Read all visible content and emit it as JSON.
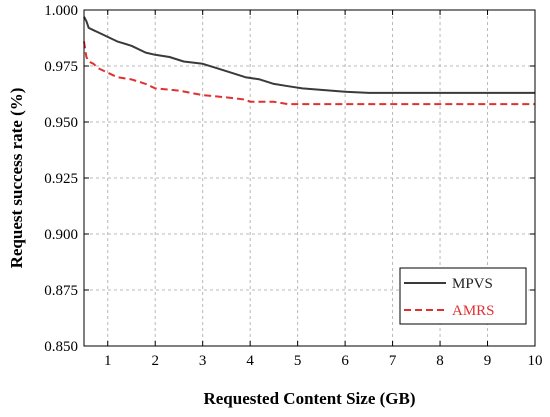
{
  "chart_data": {
    "type": "line",
    "xlabel": "Requested Content Size (GB)",
    "ylabel": "Request success rate (%)",
    "xlim": [
      0.5,
      10
    ],
    "ylim": [
      0.85,
      1.0
    ],
    "x_ticks": [
      1,
      2,
      3,
      4,
      5,
      6,
      7,
      8,
      9,
      10
    ],
    "y_ticks": [
      0.85,
      0.875,
      0.9,
      0.925,
      0.95,
      0.975,
      1.0
    ],
    "x_tick_labels": [
      "1",
      "2",
      "3",
      "4",
      "5",
      "6",
      "7",
      "8",
      "9",
      "10"
    ],
    "y_tick_labels": [
      "0.850",
      "0.875",
      "0.900",
      "0.925",
      "0.950",
      "0.975",
      "1.000"
    ],
    "grid": true,
    "legend_position": "bottom-right",
    "series": [
      {
        "name": "MPVS",
        "color": "#3a3a3a",
        "line_style": "solid",
        "x": [
          0.5,
          0.55,
          0.6,
          0.7,
          0.8,
          1.0,
          1.2,
          1.5,
          1.8,
          2.0,
          2.3,
          2.6,
          3.0,
          3.3,
          3.6,
          3.9,
          4.2,
          4.5,
          4.8,
          5.1,
          5.4,
          5.7,
          6.0,
          6.5,
          7.0,
          7.5,
          8.0,
          8.5,
          9.0,
          9.5,
          10.0
        ],
        "y": [
          0.997,
          0.995,
          0.992,
          0.991,
          0.99,
          0.988,
          0.986,
          0.984,
          0.981,
          0.98,
          0.979,
          0.977,
          0.976,
          0.974,
          0.972,
          0.97,
          0.969,
          0.967,
          0.966,
          0.965,
          0.9645,
          0.964,
          0.9635,
          0.963,
          0.963,
          0.963,
          0.963,
          0.963,
          0.963,
          0.963,
          0.963
        ]
      },
      {
        "name": "AMRS",
        "color": "#e03030",
        "line_style": "dashed",
        "x": [
          0.5,
          0.55,
          0.6,
          0.7,
          0.8,
          1.0,
          1.2,
          1.5,
          1.8,
          2.0,
          2.5,
          3.0,
          3.5,
          3.9,
          4.0,
          4.5,
          4.8,
          5.0,
          5.5,
          6.0,
          6.5,
          7.0,
          7.5,
          8.0,
          8.5,
          9.0,
          9.5,
          10.0
        ],
        "y": [
          0.986,
          0.979,
          0.977,
          0.976,
          0.974,
          0.972,
          0.97,
          0.969,
          0.967,
          0.965,
          0.964,
          0.962,
          0.961,
          0.96,
          0.959,
          0.959,
          0.958,
          0.958,
          0.958,
          0.958,
          0.958,
          0.958,
          0.958,
          0.958,
          0.958,
          0.958,
          0.958,
          0.958
        ]
      }
    ]
  }
}
